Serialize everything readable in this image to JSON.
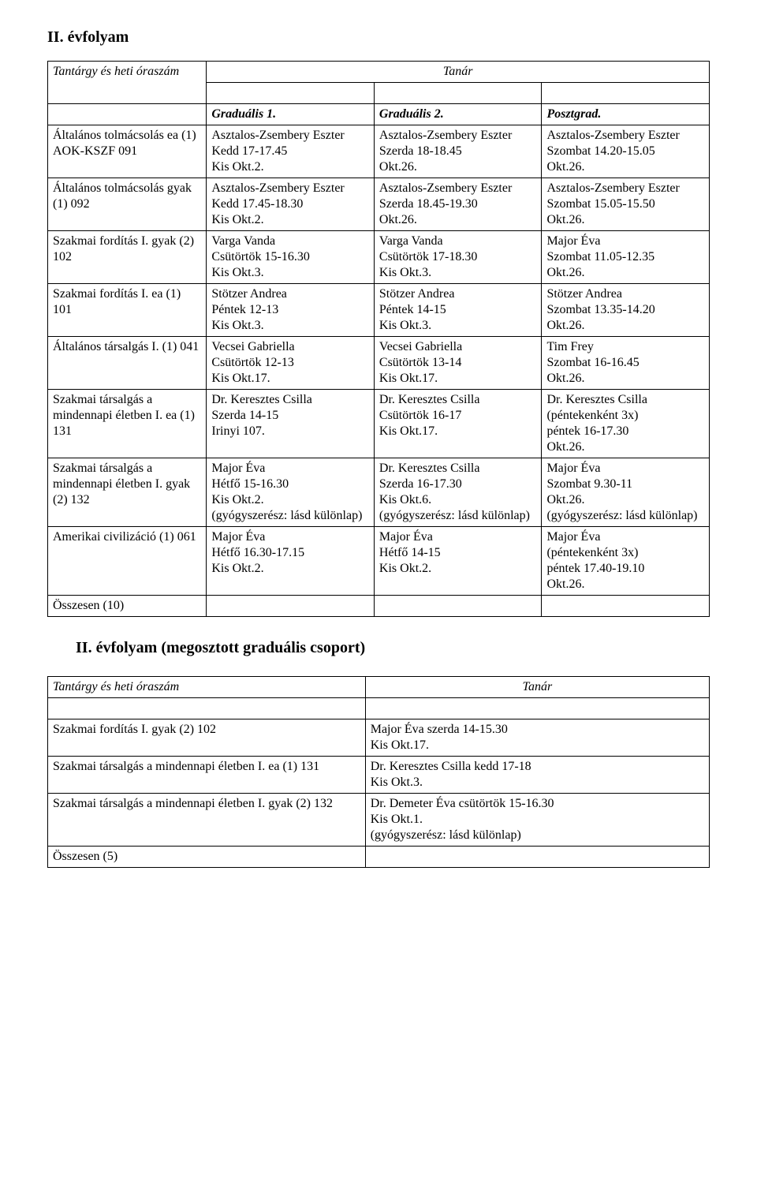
{
  "heading1": "II. évfolyam",
  "heading2": "II. évfolyam (megosztott graduális csoport)",
  "header": {
    "subject": "Tantárgy és heti óraszám",
    "tanar": "Tanár",
    "g1": "Graduális 1.",
    "g2": "Graduális 2.",
    "pg": "Posztgrad."
  },
  "rows": [
    {
      "subject": "Általános tolmácsolás ea (1) AOK-KSZF 091",
      "g1": "Asztalos-Zsembery Eszter\nKedd 17-17.45\nKis Okt.2.",
      "g2": "Asztalos-Zsembery Eszter\nSzerda 18-18.45\nOkt.26.",
      "pg": "Asztalos-Zsembery Eszter\nSzombat 14.20-15.05\nOkt.26."
    },
    {
      "subject": "Általános tolmácsolás gyak (1) 092",
      "g1": "Asztalos-Zsembery Eszter\nKedd 17.45-18.30\nKis Okt.2.",
      "g2": "Asztalos-Zsembery Eszter\nSzerda 18.45-19.30\nOkt.26.",
      "pg": "Asztalos-Zsembery Eszter\nSzombat 15.05-15.50\nOkt.26."
    },
    {
      "subject": "Szakmai fordítás I. gyak (2) 102",
      "g1": "Varga Vanda\nCsütörtök 15-16.30\nKis Okt.3.",
      "g2": "Varga Vanda\nCsütörtök 17-18.30\nKis Okt.3.",
      "pg": "Major Éva\nSzombat 11.05-12.35\nOkt.26."
    },
    {
      "subject": "Szakmai fordítás I. ea (1) 101",
      "g1": "Stötzer Andrea\nPéntek 12-13\nKis Okt.3.",
      "g2": "Stötzer Andrea\nPéntek 14-15\nKis Okt.3.",
      "pg": "Stötzer Andrea\nSzombat 13.35-14.20\nOkt.26."
    },
    {
      "subject": "Általános társalgás I. (1) 041",
      "g1": "Vecsei Gabriella\nCsütörtök 12-13\nKis Okt.17.",
      "g2": "Vecsei Gabriella\nCsütörtök 13-14\nKis Okt.17.",
      "pg": "Tim Frey\nSzombat 16-16.45\nOkt.26."
    },
    {
      "subject": "Szakmai társalgás a mindennapi életben I. ea (1) 131",
      "g1": "Dr. Keresztes Csilla\nSzerda 14-15\nIrinyi 107.",
      "g2": "Dr. Keresztes Csilla\nCsütörtök 16-17\nKis Okt.17.",
      "pg": "Dr. Keresztes Csilla\n(péntekenként 3x)\npéntek 16-17.30\nOkt.26."
    },
    {
      "subject": "Szakmai társalgás a mindennapi életben I. gyak (2) 132",
      "g1": "Major Éva\nHétfő 15-16.30\nKis Okt.2.\n(gyógyszerész: lásd különlap)",
      "g2": "Dr. Keresztes Csilla\nSzerda 16-17.30\nKis Okt.6.\n(gyógyszerész: lásd különlap)",
      "pg": "Major Éva\nSzombat 9.30-11\nOkt.26.\n(gyógyszerész: lásd különlap)"
    },
    {
      "subject": "Amerikai civilizáció (1) 061",
      "g1": "Major Éva\nHétfő 16.30-17.15\nKis Okt.2.",
      "g2": "Major Éva\nHétfő 14-15\nKis Okt.2.",
      "pg": "Major Éva\n(péntekenként 3x)\npéntek 17.40-19.10\nOkt.26."
    }
  ],
  "total1": "Összesen (10)",
  "table2_header": {
    "subject": "Tantárgy és heti óraszám",
    "tanar": "Tanár"
  },
  "table2_rows": [
    {
      "subject": "Szakmai fordítás I. gyak (2) 102",
      "tanar": "Major Éva szerda 14-15.30\nKis Okt.17."
    },
    {
      "subject": "Szakmai társalgás a mindennapi életben I. ea (1) 131",
      "tanar": "Dr. Keresztes Csilla kedd 17-18\nKis Okt.3."
    },
    {
      "subject": "Szakmai társalgás a mindennapi életben I. gyak (2) 132",
      "tanar": "Dr. Demeter Éva csütörtök 15-16.30\nKis Okt.1.\n(gyógyszerész: lásd különlap)"
    }
  ],
  "total2": "Összesen (5)"
}
